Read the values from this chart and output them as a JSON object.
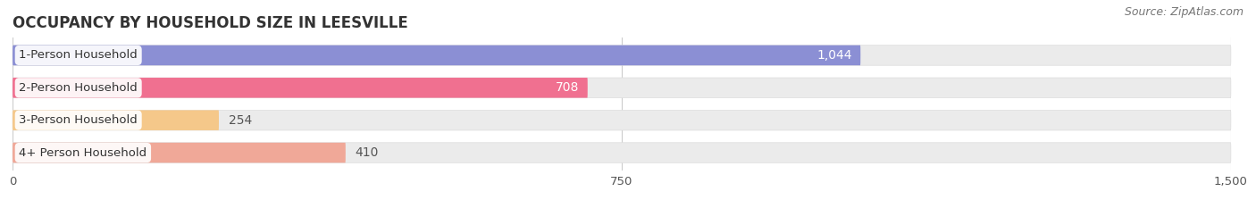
{
  "title": "OCCUPANCY BY HOUSEHOLD SIZE IN LEESVILLE",
  "source": "Source: ZipAtlas.com",
  "categories": [
    "1-Person Household",
    "2-Person Household",
    "3-Person Household",
    "4+ Person Household"
  ],
  "values": [
    1044,
    708,
    254,
    410
  ],
  "bar_colors": [
    "#8b8fd4",
    "#f07090",
    "#f5c88a",
    "#f0a898"
  ],
  "bar_bg_color": "#ebebeb",
  "xlim": [
    0,
    1500
  ],
  "xticks": [
    0,
    750,
    1500
  ],
  "background_color": "#ffffff",
  "title_fontsize": 12,
  "source_fontsize": 9,
  "bar_label_fontsize": 10,
  "category_fontsize": 9.5
}
